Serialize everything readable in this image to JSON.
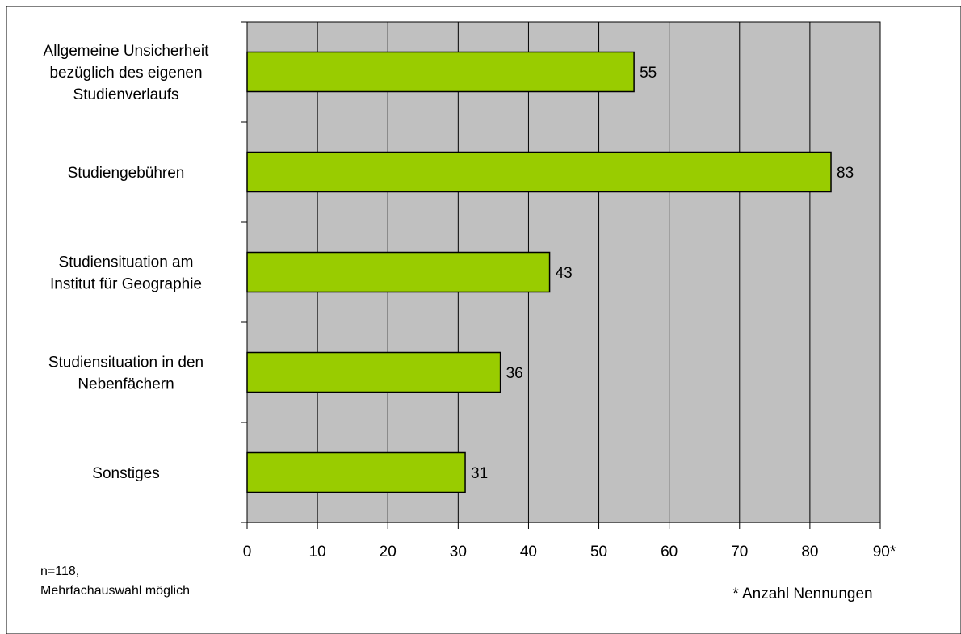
{
  "chart_data": {
    "type": "bar",
    "orientation": "horizontal",
    "categories": [
      "Allgemeine Unsicherheit bezüglich des eigenen Studienverlaufs",
      "Studiengebühren",
      "Studiensituation am Institut für Geographie",
      "Studiensituation in den Nebenfächern",
      "Sonstiges"
    ],
    "category_lines": [
      [
        "Allgemeine Unsicherheit",
        "bezüglich des eigenen",
        "Studienverlaufs"
      ],
      [
        "Studiengebühren"
      ],
      [
        "Studiensituation am",
        "Institut für Geographie"
      ],
      [
        "Studiensituation in den",
        "Nebenfächern"
      ],
      [
        "Sonstiges"
      ]
    ],
    "values": [
      55,
      83,
      43,
      36,
      31
    ],
    "value_labels": [
      "55",
      "83",
      "43",
      "36",
      "31"
    ],
    "xlim": [
      0,
      90
    ],
    "xticks": [
      "0",
      "10",
      "20",
      "30",
      "40",
      "50",
      "60",
      "70",
      "80",
      "90*"
    ],
    "unit_note": "* Anzahl Nennungen",
    "grid": true,
    "colors": {
      "bar_fill": "#99cc00",
      "bar_stroke": "#000000",
      "plot_background": "#c0c0c0",
      "grid": "#000000"
    }
  },
  "footnote": {
    "line1": "n=118,",
    "line2": "Mehrfachauswahl möglich"
  }
}
